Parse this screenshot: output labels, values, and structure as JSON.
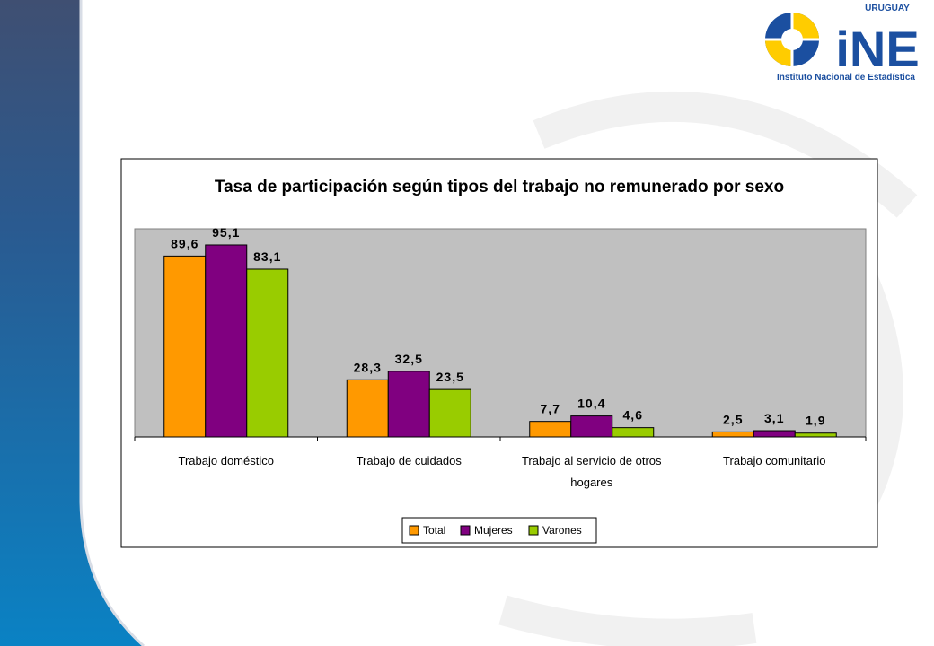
{
  "logo": {
    "country": "URUGUAY",
    "acronym": "iNE",
    "institution": "Instituto Nacional de Estadística"
  },
  "colors": {
    "sidebar_dark": "#35486e",
    "sidebar_mid": "#1d5e9a",
    "sidebar_light": "#0a7fc0",
    "plot_area": "#c0c0c0",
    "total": "#ff9900",
    "mujeres": "#800080",
    "varones": "#99cc00",
    "logo_blue": "#1b4fa0",
    "logo_yellow": "#ffcc00"
  },
  "chart_data": {
    "type": "bar",
    "title": "Tasa de participación según tipos del trabajo no remunerado por sexo",
    "categories": [
      [
        "Trabajo doméstico"
      ],
      [
        "Trabajo de cuidados"
      ],
      [
        "Trabajo al servicio de otros",
        "hogares"
      ],
      [
        "Trabajo comunitario"
      ]
    ],
    "series": [
      {
        "name": "Total",
        "values": [
          89.6,
          28.3,
          7.7,
          2.5
        ],
        "labels": [
          "89,6",
          "28,3",
          "7,7",
          "2,5"
        ]
      },
      {
        "name": "Mujeres",
        "values": [
          95.1,
          32.5,
          10.4,
          3.1
        ],
        "labels": [
          "95,1",
          "32,5",
          "10,4",
          "3,1"
        ]
      },
      {
        "name": "Varones",
        "values": [
          83.1,
          23.5,
          4.6,
          1.9
        ],
        "labels": [
          "83,1",
          "23,5",
          "4,6",
          "1,9"
        ]
      }
    ],
    "ylim": [
      0,
      100
    ],
    "grid": false,
    "legend": "bottom"
  }
}
